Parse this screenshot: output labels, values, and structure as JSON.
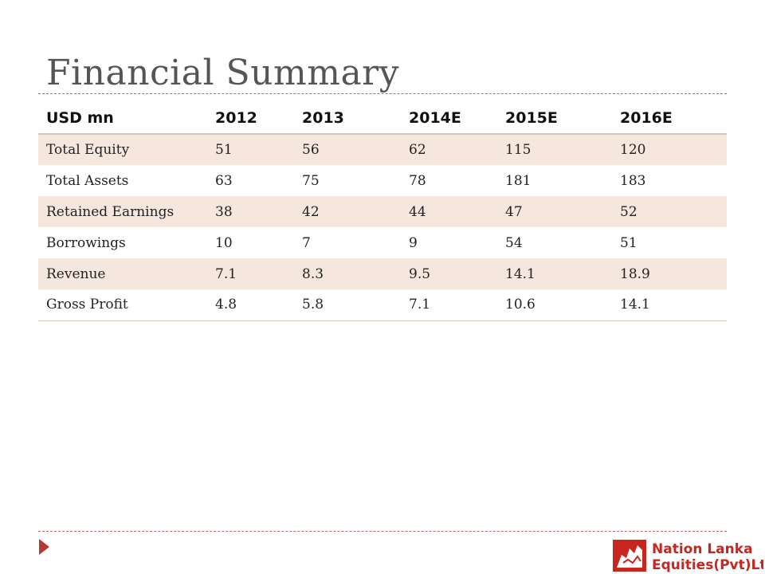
{
  "page_title": "Financial Summary",
  "table": {
    "headers": [
      "USD mn",
      "2012",
      "2013",
      "2014E",
      "2015E",
      "2016E"
    ],
    "rows": [
      [
        "Total Equity",
        "51",
        "56",
        "62",
        "115",
        "120"
      ],
      [
        "Total Assets",
        "63",
        "75",
        "78",
        "181",
        "183"
      ],
      [
        "Retained Earnings",
        "38",
        "42",
        "44",
        "47",
        "52"
      ],
      [
        "Borrowings",
        "10",
        "7",
        "9",
        "54",
        "51"
      ],
      [
        "Revenue",
        "7.1",
        "8.3",
        "9.5",
        "14.1",
        "18.9"
      ],
      [
        "Gross Profit",
        "4.8",
        "5.8",
        "7.1",
        "10.6",
        "14.1"
      ]
    ]
  },
  "logo": {
    "line1": "Nation Lanka",
    "line2": "Equities(Pvt)Ltd.",
    "color": "#c8251f"
  },
  "colors": {
    "band": "#f5e7dd",
    "rule": "#b76e6e",
    "bullet": "#b73a32"
  }
}
